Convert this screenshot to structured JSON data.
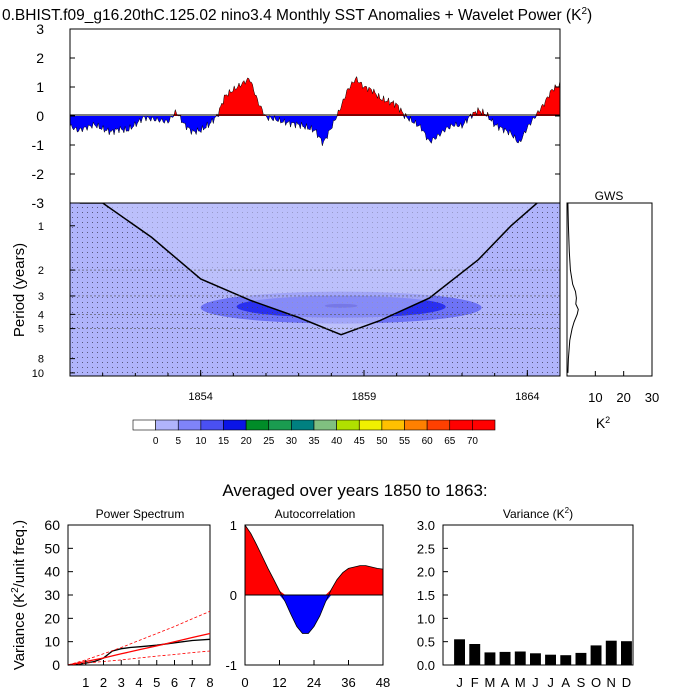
{
  "title": "0.BHIST.f09_g16.20thC.125.02 nino3.4 Monthly SST Anomalies + Wavelet Power (K",
  "title_sup": "2",
  "title_close": ")",
  "anomaly_chart": {
    "type": "area",
    "ylim": [
      -3,
      3
    ],
    "yticks": [
      "3",
      "2",
      "1",
      "0",
      "-1",
      "-2",
      "-3"
    ],
    "xlim": [
      1850,
      1865
    ],
    "positive_color": "#ff0000",
    "negative_color": "#0000ff",
    "x": [
      1850.0,
      1850.25,
      1850.5,
      1850.75,
      1851.0,
      1851.25,
      1851.5,
      1851.75,
      1852.0,
      1852.25,
      1852.5,
      1852.75,
      1853.0,
      1853.25,
      1853.5,
      1853.75,
      1854.0,
      1854.25,
      1854.5,
      1854.75,
      1855.0,
      1855.25,
      1855.5,
      1855.75,
      1856.0,
      1856.25,
      1856.5,
      1856.75,
      1857.0,
      1857.25,
      1857.5,
      1857.75,
      1858.0,
      1858.25,
      1858.5,
      1858.75,
      1859.0,
      1859.25,
      1859.5,
      1859.75,
      1860.0,
      1860.25,
      1860.5,
      1860.75,
      1861.0,
      1861.25,
      1861.5,
      1861.75,
      1862.0,
      1862.25,
      1862.5,
      1862.75,
      1863.0,
      1863.25,
      1863.5,
      1863.75,
      1864.0,
      1864.25,
      1864.5,
      1864.75,
      1865.0
    ],
    "values": [
      -0.35,
      -0.5,
      -0.4,
      -0.3,
      -0.45,
      -0.55,
      -0.45,
      -0.5,
      -0.3,
      -0.05,
      -0.1,
      -0.15,
      -0.2,
      0.15,
      -0.3,
      -0.55,
      -0.5,
      -0.3,
      0.0,
      0.7,
      0.9,
      1.1,
      1.3,
      0.5,
      -0.05,
      -0.1,
      -0.2,
      -0.25,
      -0.3,
      -0.4,
      -0.5,
      -0.95,
      -0.4,
      0.2,
      0.9,
      1.3,
      1.0,
      0.9,
      0.6,
      0.5,
      0.4,
      0.0,
      -0.2,
      -0.4,
      -0.9,
      -0.7,
      -0.45,
      -0.3,
      -0.35,
      0.0,
      0.2,
      0.05,
      -0.3,
      -0.45,
      -0.6,
      -0.95,
      -0.4,
      0.0,
      0.4,
      0.9,
      1.1
    ]
  },
  "wavelet_chart": {
    "type": "heatmap",
    "ylabel": "Period (years)",
    "yticks": [
      1,
      2,
      3,
      4,
      5,
      8,
      10
    ],
    "ytick_labels": [
      "1",
      "2",
      "3",
      "4",
      "5",
      "8",
      "10"
    ],
    "ylim": [
      0.7,
      10.5
    ],
    "xlim": [
      1850,
      1865
    ],
    "xticks": [
      1854,
      1859,
      1864
    ],
    "xtick_labels": [
      "1854",
      "1859",
      "1864"
    ],
    "background_level": 5,
    "contours": [
      {
        "level": 10,
        "center_year": 1858.3,
        "center_period": 3.6,
        "half_width_years": 4.3,
        "color": "#6e73f6"
      },
      {
        "level": 15,
        "center_year": 1858.3,
        "center_period": 3.55,
        "half_width_years": 3.2,
        "color": "#2a30f0"
      },
      {
        "level": 20,
        "center_year": 1858.3,
        "center_period": 3.5,
        "half_width_years": 0.5,
        "color": "#0000c8"
      }
    ],
    "cone_of_influence": {
      "x": [
        1850.3,
        1851.0,
        1852.5,
        1854.0,
        1855.5,
        1857.0,
        1858.3,
        1859.5,
        1861.0,
        1862.5,
        1863.5,
        1864.3
      ],
      "periods": [
        0.7,
        0.7,
        1.2,
        2.3,
        3.2,
        4.2,
        5.5,
        4.4,
        3.1,
        1.7,
        1.0,
        0.7
      ]
    }
  },
  "gws_chart": {
    "type": "line",
    "title": "GWS",
    "xlabel": "K",
    "xlabel_sup": "2",
    "xticks": [
      "10",
      "20",
      "30"
    ],
    "xlim": [
      0,
      30
    ],
    "periods": [
      0.7,
      1.0,
      1.5,
      2.0,
      2.5,
      2.8,
      3.1,
      3.4,
      3.7,
      4.0,
      4.5,
      5.0,
      6.0,
      8.0,
      10.0
    ],
    "values": [
      0.3,
      0.5,
      0.8,
      1.2,
      2.0,
      3.0,
      3.3,
      3.1,
      4.0,
      3.6,
      2.5,
      1.8,
      1.0,
      0.5,
      0.3
    ]
  },
  "colorbar": {
    "labels": [
      "0",
      "5",
      "10",
      "15",
      "20",
      "25",
      "30",
      "35",
      "40",
      "45",
      "50",
      "55",
      "60",
      "65",
      "70"
    ],
    "colors": [
      "#ffffff",
      "#b0b4fb",
      "#7f84f8",
      "#4a50f2",
      "#0a14e6",
      "#008c28",
      "#1a9c50",
      "#008080",
      "#80c080",
      "#b0e000",
      "#f0f000",
      "#ffc000",
      "#ff8000",
      "#ff4000",
      "#ff0000",
      "#ff0000"
    ]
  },
  "bottom_title": "Averaged over years 1850 to 1863:",
  "power_spectrum": {
    "type": "line",
    "title": "Power Spectrum",
    "ylabel": "Variance (K",
    "ylabel_sup": "2",
    "ylabel_close": "/unit freq.)",
    "ylim": [
      0,
      60
    ],
    "yticks": [
      "60",
      "50",
      "40",
      "30",
      "20",
      "10",
      "0"
    ],
    "xlim": [
      0,
      8
    ],
    "xticks": [
      "1",
      "2",
      "3",
      "4",
      "5",
      "6",
      "7",
      "8"
    ],
    "series": [
      {
        "name": "spectrum",
        "color": "#000000",
        "x": [
          0,
          0.5,
          1,
          1.5,
          2,
          2.5,
          3,
          3.5,
          4,
          5,
          6,
          7,
          8
        ],
        "values": [
          0,
          0.2,
          0.8,
          1.5,
          3,
          6,
          7,
          7.5,
          7.8,
          8.5,
          9.5,
          10.5,
          11
        ]
      },
      {
        "name": "red-noise",
        "color": "#ff0000",
        "x": [
          0,
          1,
          2,
          3,
          4,
          5,
          6,
          7,
          8
        ],
        "values": [
          0,
          1.5,
          3,
          4.8,
          6.5,
          8.2,
          10,
          11.8,
          13.5
        ]
      },
      {
        "name": "upper-conf",
        "color": "#ff0000",
        "dashed": true,
        "x": [
          0,
          1,
          2,
          3,
          4,
          5,
          6,
          7,
          8
        ],
        "values": [
          0,
          2.2,
          4.8,
          7.5,
          10.5,
          13.5,
          16.5,
          19.8,
          23
        ]
      },
      {
        "name": "lower-conf",
        "color": "#ff0000",
        "dashed": true,
        "x": [
          0,
          1,
          2,
          3,
          4,
          5,
          6,
          7,
          8
        ],
        "values": [
          0,
          0.8,
          1.5,
          2.2,
          3,
          3.8,
          4.5,
          5.3,
          6
        ]
      }
    ]
  },
  "autocorrelation": {
    "type": "area",
    "title": "Autocorrelation",
    "ylim": [
      -1,
      1
    ],
    "yticks": [
      "1",
      "0",
      "-1"
    ],
    "xlim": [
      0,
      48
    ],
    "xticks": [
      "0",
      "12",
      "24",
      "36",
      "48"
    ],
    "x": [
      0,
      2,
      4,
      6,
      8,
      10,
      12,
      14,
      16,
      18,
      20,
      22,
      24,
      26,
      28,
      30,
      32,
      34,
      36,
      38,
      40,
      42,
      44,
      46,
      48
    ],
    "values": [
      1.0,
      0.88,
      0.72,
      0.55,
      0.38,
      0.22,
      0.06,
      -0.1,
      -0.28,
      -0.45,
      -0.55,
      -0.55,
      -0.45,
      -0.3,
      -0.1,
      0.08,
      0.22,
      0.32,
      0.38,
      0.4,
      0.42,
      0.42,
      0.4,
      0.38,
      0.37
    ]
  },
  "variance": {
    "type": "bar",
    "title": "Variance (K",
    "title_sup": "2",
    "title_close": ")",
    "ylim": [
      0,
      3
    ],
    "yticks": [
      "3.0",
      "2.5",
      "2.0",
      "1.5",
      "1.0",
      "0.5",
      "0.0"
    ],
    "categories": [
      "J",
      "F",
      "M",
      "A",
      "M",
      "J",
      "J",
      "A",
      "S",
      "O",
      "N",
      "D"
    ],
    "values": [
      0.55,
      0.45,
      0.27,
      0.28,
      0.29,
      0.25,
      0.22,
      0.21,
      0.26,
      0.42,
      0.52,
      0.51
    ]
  }
}
